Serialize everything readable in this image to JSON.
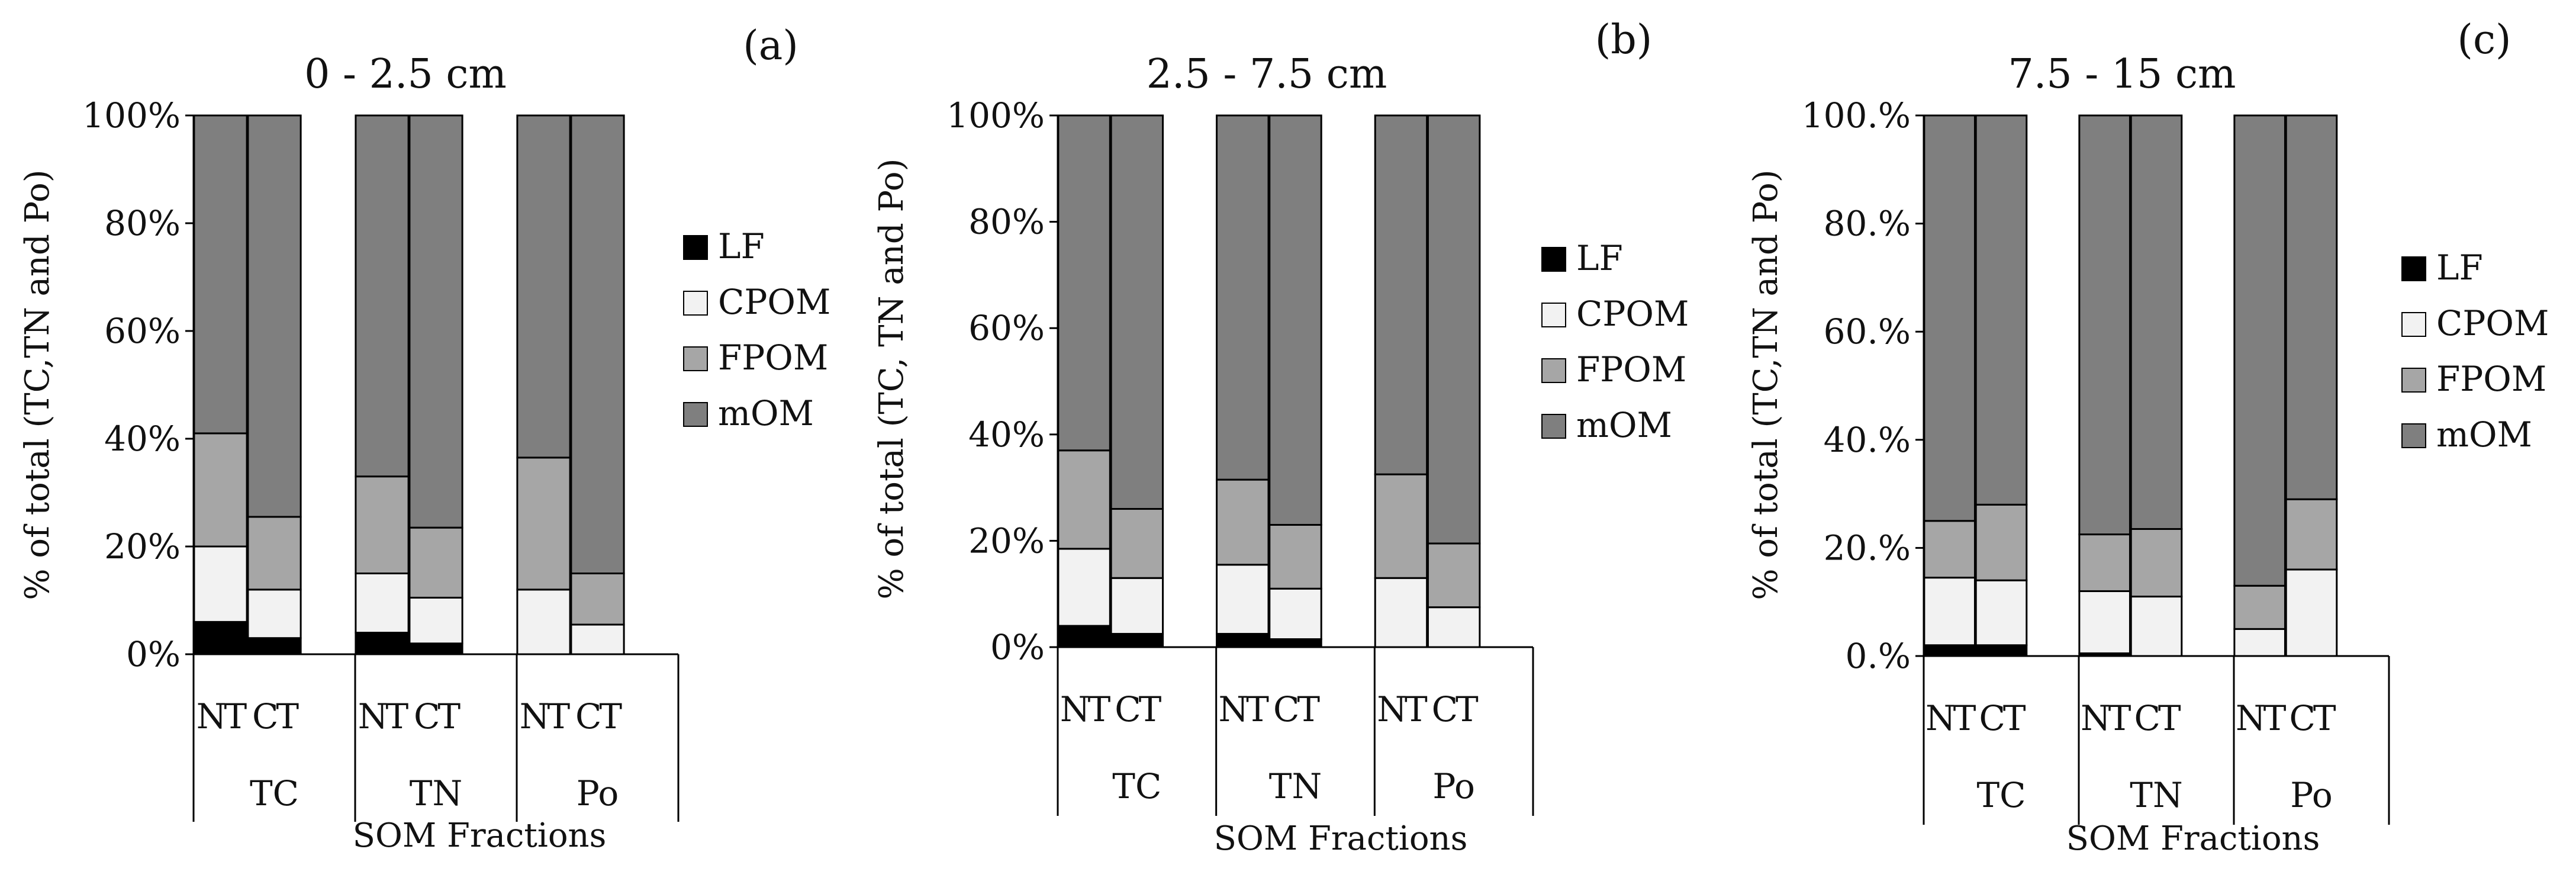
{
  "figure": {
    "series_colors": {
      "LF": "#000000",
      "CPOM": "#f2f2f2",
      "FPOM": "#a6a6a6",
      "mOM": "#7f7f7f"
    }
  },
  "chart_data": [
    {
      "type": "bar",
      "stacked": true,
      "panel_label": "(a)",
      "title": "0 - 2.5 cm",
      "ylabel": "%  of total (TC,TN and Po)",
      "xlabel": "SOM Fractions",
      "ylim": [
        0,
        100
      ],
      "y_ticks": [
        "0%",
        "20%",
        "40%",
        "60%",
        "80%",
        "100%"
      ],
      "grid": false,
      "legend_position": "right",
      "legend": [
        "LF",
        "CPOM",
        "FPOM",
        "mOM"
      ],
      "groups": [
        "TC",
        "TN",
        "Po"
      ],
      "sub_categories": [
        "NT",
        "CT"
      ],
      "series": [
        {
          "name": "LF",
          "values": [
            6,
            3,
            4,
            2,
            0,
            0
          ]
        },
        {
          "name": "CPOM",
          "values": [
            14,
            9,
            11,
            8.5,
            12,
            5.5
          ]
        },
        {
          "name": "FPOM",
          "values": [
            21,
            13.5,
            18,
            13,
            24.5,
            9.5
          ]
        },
        {
          "name": "mOM",
          "values": [
            59,
            74.5,
            67,
            76.5,
            63.5,
            85
          ]
        }
      ]
    },
    {
      "type": "bar",
      "stacked": true,
      "panel_label": "(b)",
      "title": "2.5 - 7.5 cm",
      "ylabel": "% of total (TC, TN and Po)",
      "xlabel": "SOM  Fractions",
      "ylim": [
        0,
        100
      ],
      "y_ticks": [
        "0%",
        "20%",
        "40%",
        "60%",
        "80%",
        "100%"
      ],
      "grid": false,
      "legend_position": "right",
      "legend": [
        "LF",
        "CPOM",
        "FPOM",
        "mOM"
      ],
      "groups": [
        "TC",
        "TN",
        "Po"
      ],
      "sub_categories": [
        "NT",
        "CT"
      ],
      "series": [
        {
          "name": "LF",
          "values": [
            4,
            2.5,
            2.5,
            1.5,
            0,
            0
          ]
        },
        {
          "name": "CPOM",
          "values": [
            14.5,
            10.5,
            13,
            9.5,
            13,
            7.5
          ]
        },
        {
          "name": "FPOM",
          "values": [
            18.5,
            13,
            16,
            12,
            19.5,
            12
          ]
        },
        {
          "name": "mOM",
          "values": [
            63,
            74,
            68.5,
            77,
            67.5,
            80.5
          ]
        }
      ]
    },
    {
      "type": "bar",
      "stacked": true,
      "panel_label": "(c)",
      "title": "7.5 - 15 cm",
      "ylabel": "% of total (TC,TN and Po)",
      "xlabel": "SOM Fractions",
      "ylim": [
        0,
        100
      ],
      "y_ticks": [
        "0.%",
        "20.%",
        "40.%",
        "60.%",
        "80.%",
        "100.%"
      ],
      "grid": false,
      "legend_position": "right",
      "legend": [
        "LF",
        "CPOM",
        "FPOM",
        "mOM"
      ],
      "groups": [
        "TC",
        "TN",
        "Po"
      ],
      "sub_categories": [
        "NT",
        "CT"
      ],
      "series": [
        {
          "name": "LF",
          "values": [
            2,
            2,
            0.5,
            0,
            0,
            0
          ]
        },
        {
          "name": "CPOM",
          "values": [
            12.5,
            12,
            11.5,
            11,
            5,
            16
          ]
        },
        {
          "name": "FPOM",
          "values": [
            10.5,
            14,
            10.5,
            12.5,
            8,
            13
          ]
        },
        {
          "name": "mOM",
          "values": [
            75,
            72,
            77.5,
            76.5,
            87,
            71
          ]
        }
      ]
    }
  ]
}
